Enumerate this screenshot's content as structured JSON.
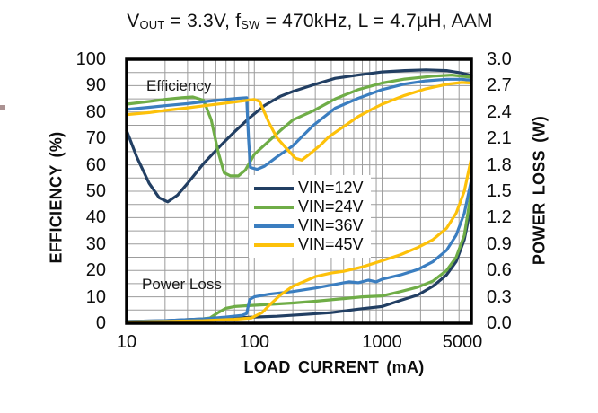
{
  "chart_data": {
    "type": "line",
    "title": "VOUT = 3.3V, fSW = 470kHz, L = 4.7µH, AAM",
    "title_parts": [
      {
        "text": "V"
      },
      {
        "text": "OUT",
        "sub": true
      },
      {
        "text": " = 3.3V, f"
      },
      {
        "text": "SW",
        "sub": true
      },
      {
        "text": " = 470kHz, L = 4.7µH, AAM"
      }
    ],
    "xlabel": "LOAD CURRENT (mA)",
    "ylabel_left": "EFFICIENCY (%)",
    "ylabel_right": "POWER LOSS (W)",
    "x_scale": "log",
    "xlim": [
      10,
      5000
    ],
    "x_ticks": [
      10,
      100,
      1000,
      5000
    ],
    "ylim_left": [
      0,
      100
    ],
    "y_ticks_left": [
      100,
      90,
      80,
      70,
      60,
      50,
      40,
      30,
      20,
      10,
      0
    ],
    "ylim_right": [
      0,
      3.0
    ],
    "y_ticks_right": [
      "3.0",
      "2.7",
      "2.4",
      "2.1",
      "1.8",
      "1.5",
      "1.2",
      "0.9",
      "0.6",
      "0.3",
      "0.0"
    ],
    "grid": {
      "horizontal_step_pct": 5,
      "vertical": "log-minor",
      "color": "#9c9c9c"
    },
    "border_color": "#000000",
    "annotations": [
      {
        "text": "Efficiency",
        "x": 163,
        "y": 86
      },
      {
        "text": "Power Loss",
        "x": 158,
        "y": 307
      }
    ],
    "legend": {
      "position": "center-left",
      "entries": [
        {
          "label": "VIN=12V",
          "color": "#223f63"
        },
        {
          "label": "VIN=24V",
          "color": "#6fad47"
        },
        {
          "label": "VIN=36V",
          "color": "#3b7ec0"
        },
        {
          "label": "VIN=45V",
          "color": "#fdc10a"
        }
      ]
    },
    "efficiency_series": [
      {
        "name": "VIN=12V",
        "color": "#223f63",
        "points": [
          [
            10,
            73
          ],
          [
            12,
            63
          ],
          [
            15,
            53
          ],
          [
            18,
            47.5
          ],
          [
            21,
            46
          ],
          [
            25,
            48.5
          ],
          [
            30,
            53
          ],
          [
            40,
            60.5
          ],
          [
            55,
            67.5
          ],
          [
            70,
            72.5
          ],
          [
            90,
            77.5
          ],
          [
            120,
            82.5
          ],
          [
            160,
            86
          ],
          [
            200,
            87.8
          ],
          [
            290,
            90.3
          ],
          [
            430,
            92.8
          ],
          [
            650,
            94
          ],
          [
            1000,
            95.2
          ],
          [
            1500,
            95.7
          ],
          [
            2200,
            96
          ],
          [
            3200,
            95.7
          ],
          [
            4200,
            94.8
          ],
          [
            5000,
            93.8
          ]
        ]
      },
      {
        "name": "VIN=24V",
        "color": "#6fad47",
        "points": [
          [
            10,
            83
          ],
          [
            15,
            84
          ],
          [
            20,
            84.8
          ],
          [
            27,
            85.4
          ],
          [
            33,
            85.7
          ],
          [
            40,
            84.5
          ],
          [
            46,
            77
          ],
          [
            52,
            65
          ],
          [
            58,
            57
          ],
          [
            65,
            55.8
          ],
          [
            75,
            55.8
          ],
          [
            85,
            58
          ],
          [
            100,
            64
          ],
          [
            130,
            69
          ],
          [
            160,
            73
          ],
          [
            200,
            77
          ],
          [
            290,
            80.5
          ],
          [
            430,
            85
          ],
          [
            650,
            88.5
          ],
          [
            1000,
            91
          ],
          [
            1500,
            92.5
          ],
          [
            2500,
            93.6
          ],
          [
            3500,
            94
          ],
          [
            5000,
            93.2
          ]
        ]
      },
      {
        "name": "VIN=36V",
        "color": "#3b7ec0",
        "points": [
          [
            10,
            81
          ],
          [
            15,
            81.8
          ],
          [
            20,
            82.4
          ],
          [
            30,
            83.2
          ],
          [
            45,
            84.2
          ],
          [
            60,
            84.8
          ],
          [
            75,
            85.2
          ],
          [
            87,
            85.4
          ],
          [
            90,
            70
          ],
          [
            93,
            59
          ],
          [
            105,
            58.3
          ],
          [
            120,
            59.5
          ],
          [
            150,
            63
          ],
          [
            200,
            67.2
          ],
          [
            290,
            75
          ],
          [
            430,
            81.5
          ],
          [
            650,
            85.2
          ],
          [
            1000,
            88.5
          ],
          [
            1500,
            90.6
          ],
          [
            2200,
            91.8
          ],
          [
            3200,
            92.4
          ],
          [
            4200,
            92.4
          ],
          [
            5000,
            92
          ]
        ]
      },
      {
        "name": "VIN=45V",
        "color": "#fdc10a",
        "points": [
          [
            10,
            79
          ],
          [
            15,
            79.8
          ],
          [
            20,
            80.6
          ],
          [
            30,
            81.6
          ],
          [
            45,
            82.7
          ],
          [
            60,
            83.4
          ],
          [
            80,
            84.2
          ],
          [
            100,
            84.8
          ],
          [
            110,
            84
          ],
          [
            130,
            76
          ],
          [
            150,
            70.3
          ],
          [
            180,
            66
          ],
          [
            210,
            62.5
          ],
          [
            235,
            61.8
          ],
          [
            270,
            64
          ],
          [
            330,
            67.5
          ],
          [
            380,
            70.5
          ],
          [
            500,
            74.5
          ],
          [
            650,
            78.3
          ],
          [
            850,
            81.3
          ],
          [
            1000,
            83
          ],
          [
            1500,
            86.3
          ],
          [
            2200,
            88.8
          ],
          [
            3200,
            90.5
          ],
          [
            4200,
            91.2
          ],
          [
            5000,
            91
          ]
        ]
      }
    ],
    "power_loss_series": [
      {
        "name": "VIN=12V",
        "color": "#223f63",
        "points": [
          [
            10,
            0.02
          ],
          [
            20,
            0.03
          ],
          [
            40,
            0.05
          ],
          [
            70,
            0.06
          ],
          [
            100,
            0.07
          ],
          [
            150,
            0.08
          ],
          [
            250,
            0.1
          ],
          [
            400,
            0.12
          ],
          [
            650,
            0.16
          ],
          [
            1000,
            0.19
          ],
          [
            1400,
            0.26
          ],
          [
            1900,
            0.32
          ],
          [
            2500,
            0.42
          ],
          [
            3200,
            0.55
          ],
          [
            3800,
            0.7
          ],
          [
            4400,
            0.95
          ],
          [
            5000,
            1.35
          ]
        ]
      },
      {
        "name": "VIN=24V",
        "color": "#6fad47",
        "points": [
          [
            10,
            0.015
          ],
          [
            20,
            0.025
          ],
          [
            35,
            0.04
          ],
          [
            45,
            0.06
          ],
          [
            52,
            0.12
          ],
          [
            60,
            0.17
          ],
          [
            70,
            0.19
          ],
          [
            90,
            0.2
          ],
          [
            120,
            0.21
          ],
          [
            200,
            0.23
          ],
          [
            300,
            0.25
          ],
          [
            500,
            0.28
          ],
          [
            700,
            0.3
          ],
          [
            1000,
            0.31
          ],
          [
            1400,
            0.36
          ],
          [
            1900,
            0.41
          ],
          [
            2500,
            0.48
          ],
          [
            3200,
            0.6
          ],
          [
            3800,
            0.75
          ],
          [
            4400,
            1.0
          ],
          [
            5000,
            1.5
          ]
        ]
      },
      {
        "name": "VIN=36V",
        "color": "#3b7ec0",
        "points": [
          [
            10,
            0.02
          ],
          [
            20,
            0.03
          ],
          [
            40,
            0.05
          ],
          [
            60,
            0.07
          ],
          [
            80,
            0.09
          ],
          [
            87,
            0.11
          ],
          [
            92,
            0.27
          ],
          [
            100,
            0.3
          ],
          [
            130,
            0.33
          ],
          [
            200,
            0.36
          ],
          [
            300,
            0.4
          ],
          [
            420,
            0.44
          ],
          [
            550,
            0.47
          ],
          [
            650,
            0.46
          ],
          [
            780,
            0.49
          ],
          [
            900,
            0.47
          ],
          [
            1000,
            0.5
          ],
          [
            1400,
            0.55
          ],
          [
            1900,
            0.61
          ],
          [
            2500,
            0.7
          ],
          [
            3200,
            0.83
          ],
          [
            3800,
            1.0
          ],
          [
            4400,
            1.25
          ],
          [
            5000,
            1.63
          ]
        ]
      },
      {
        "name": "VIN=45V",
        "color": "#fdc10a",
        "points": [
          [
            10,
            0.015
          ],
          [
            20,
            0.02
          ],
          [
            40,
            0.03
          ],
          [
            70,
            0.045
          ],
          [
            95,
            0.06
          ],
          [
            115,
            0.12
          ],
          [
            130,
            0.2
          ],
          [
            160,
            0.32
          ],
          [
            200,
            0.42
          ],
          [
            250,
            0.48
          ],
          [
            300,
            0.53
          ],
          [
            400,
            0.57
          ],
          [
            500,
            0.59
          ],
          [
            700,
            0.64
          ],
          [
            1000,
            0.71
          ],
          [
            1400,
            0.78
          ],
          [
            1900,
            0.86
          ],
          [
            2500,
            0.95
          ],
          [
            3200,
            1.08
          ],
          [
            3800,
            1.25
          ],
          [
            4400,
            1.5
          ],
          [
            5000,
            1.88
          ]
        ]
      }
    ]
  }
}
